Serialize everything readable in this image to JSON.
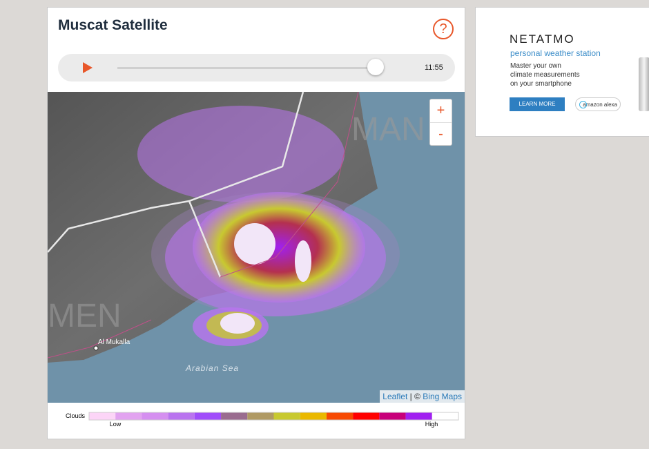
{
  "widget": {
    "title": "Muscat Satellite",
    "help": "?",
    "time": "11:55",
    "zoom_in": "+",
    "zoom_out": "-",
    "map_labels": {
      "country_1": "MAN",
      "country_2": "MEN",
      "city": "Al Mukalla",
      "sea": "Arabian Sea"
    },
    "attribution": {
      "leaflet": "Leaflet",
      "separator": "|",
      "copyright": "©",
      "bing": "Bing Maps"
    },
    "legend": {
      "label": "Clouds",
      "low": "Low",
      "high": "High",
      "colors": [
        "#fcd5f7",
        "#e2a3f0",
        "#d58ff0",
        "#b974ef",
        "#a04dfa",
        "#9a6c8f",
        "#b09a64",
        "#c8c930",
        "#eab800",
        "#f74a02",
        "#ff0000",
        "#c8007a",
        "#a020f0",
        "#ffffff"
      ]
    }
  },
  "ad": {
    "brand": "NETATMO",
    "tagline": "personal weather station",
    "body": [
      "Master your own",
      "climate measurements",
      "on your smartphone"
    ],
    "button": "LEARN MORE",
    "alexa": "amazon alexa"
  }
}
